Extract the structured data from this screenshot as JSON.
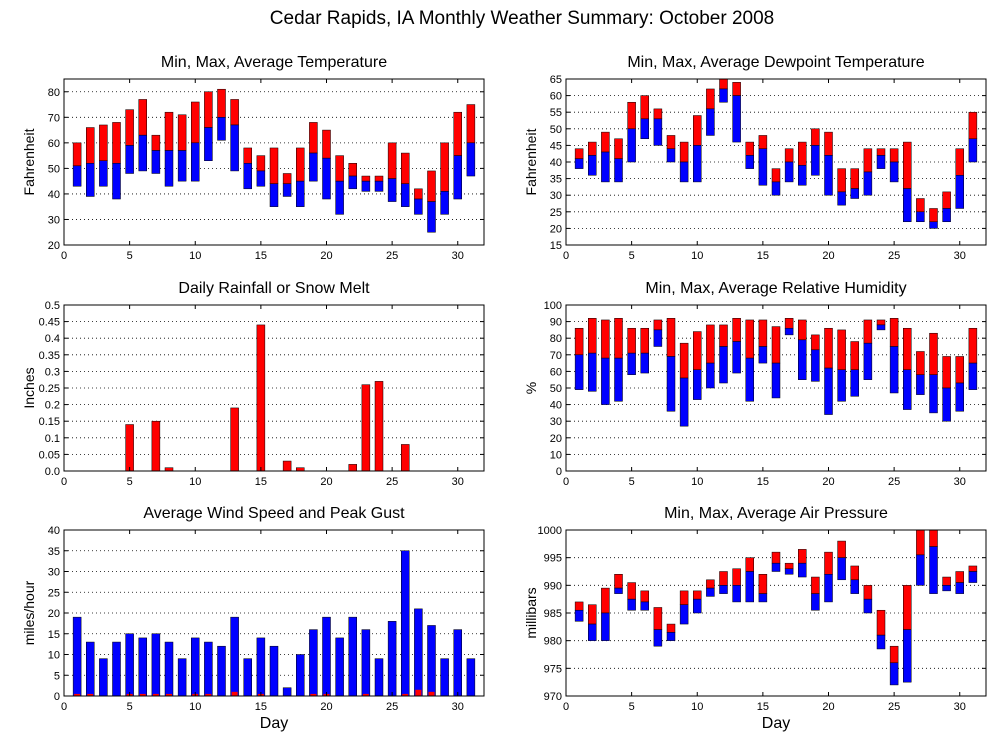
{
  "page": {
    "title": "Cedar Rapids, IA Monthly Weather Summary: October 2008"
  },
  "chart_data": [
    {
      "id": "temp",
      "type": "bar",
      "variant": "range-avg",
      "title": "Min, Max, Average Temperature",
      "xlabel": "",
      "ylabel": "Fahrenheit",
      "xlim": [
        0,
        32
      ],
      "ylim": [
        20,
        85
      ],
      "xticks": [
        0,
        5,
        10,
        15,
        20,
        25,
        30
      ],
      "yticks": [
        20,
        30,
        40,
        50,
        60,
        70,
        80
      ],
      "grid": true,
      "colors": {
        "upper": "#ff0000",
        "lower": "#0000ff"
      },
      "x": [
        1,
        2,
        3,
        4,
        5,
        6,
        7,
        8,
        9,
        10,
        11,
        12,
        13,
        14,
        15,
        16,
        17,
        18,
        19,
        20,
        21,
        22,
        23,
        24,
        25,
        26,
        27,
        28,
        29,
        30,
        31
      ],
      "min": [
        43,
        39,
        43,
        38,
        48,
        49,
        48,
        43,
        45,
        45,
        53,
        61,
        49,
        42,
        43,
        35,
        39,
        35,
        45,
        38,
        32,
        42,
        41,
        41,
        37,
        35,
        32,
        25,
        32,
        38,
        47
      ],
      "avg": [
        51,
        52,
        53,
        52,
        59,
        63,
        57,
        57,
        57,
        60,
        66,
        70,
        67,
        52,
        49,
        44,
        44,
        45,
        56,
        54,
        45,
        47,
        45,
        45,
        46,
        44,
        38,
        37,
        41,
        55,
        60
      ],
      "max": [
        60,
        66,
        67,
        68,
        73,
        77,
        63,
        72,
        71,
        76,
        80,
        81,
        77,
        58,
        55,
        58,
        48,
        58,
        68,
        65,
        55,
        52,
        47,
        47,
        60,
        56,
        42,
        49,
        60,
        72,
        75
      ]
    },
    {
      "id": "dewpoint",
      "type": "bar",
      "variant": "range-avg",
      "title": "Min, Max, Average Dewpoint Temperature",
      "xlabel": "",
      "ylabel": "Fahrenheit",
      "xlim": [
        0,
        32
      ],
      "ylim": [
        15,
        65
      ],
      "xticks": [
        0,
        5,
        10,
        15,
        20,
        25,
        30
      ],
      "yticks": [
        15,
        20,
        25,
        30,
        35,
        40,
        45,
        50,
        55,
        60,
        65
      ],
      "grid": true,
      "colors": {
        "upper": "#ff0000",
        "lower": "#0000ff"
      },
      "x": [
        1,
        2,
        3,
        4,
        5,
        6,
        7,
        8,
        9,
        10,
        11,
        12,
        13,
        14,
        15,
        16,
        17,
        18,
        19,
        20,
        21,
        22,
        23,
        24,
        25,
        26,
        27,
        28,
        29,
        30,
        31
      ],
      "min": [
        38,
        36,
        34,
        34,
        40,
        47,
        45,
        40,
        34,
        34,
        48,
        58,
        46,
        38,
        33,
        30,
        34,
        33,
        36,
        30,
        27,
        29,
        30,
        38,
        34,
        22,
        22,
        20,
        22,
        26,
        40
      ],
      "avg": [
        41,
        42,
        43,
        41,
        50,
        53,
        53,
        44,
        40,
        45,
        56,
        62,
        60,
        42,
        44,
        34,
        40,
        39,
        45,
        42,
        31,
        32,
        37,
        42,
        40,
        32,
        25,
        22,
        26,
        36,
        47
      ],
      "max": [
        44,
        46,
        49,
        47,
        58,
        60,
        56,
        48,
        46,
        54,
        62,
        65,
        64,
        46,
        48,
        38,
        44,
        46,
        50,
        49,
        38,
        38,
        44,
        44,
        44,
        46,
        29,
        26,
        31,
        44,
        55
      ]
    },
    {
      "id": "rain",
      "type": "bar",
      "title": "Daily Rainfall or Snow Melt",
      "xlabel": "",
      "ylabel": "Inches",
      "xlim": [
        0,
        32
      ],
      "ylim": [
        0,
        0.5
      ],
      "xticks": [
        0,
        5,
        10,
        15,
        20,
        25,
        30
      ],
      "yticks": [
        0.0,
        0.05,
        0.1,
        0.15,
        0.2,
        0.25,
        0.3,
        0.35,
        0.4,
        0.45,
        0.5
      ],
      "ytick_labels": [
        "0.0",
        "0.05",
        "0.1",
        "0.15",
        "0.2",
        "0.25",
        "0.3",
        "0.35",
        "0.4",
        "0.45",
        "0.5"
      ],
      "grid": true,
      "colors": {
        "bar": "#ff0000"
      },
      "x": [
        5,
        7,
        8,
        13,
        15,
        17,
        18,
        22,
        23,
        24,
        26
      ],
      "values": [
        0.14,
        0.15,
        0.01,
        0.19,
        0.44,
        0.03,
        0.01,
        0.02,
        0.26,
        0.27,
        0.08
      ]
    },
    {
      "id": "humidity",
      "type": "bar",
      "variant": "range-avg",
      "title": "Min, Max, Average Relative Humidity",
      "xlabel": "",
      "ylabel": "%",
      "xlim": [
        0,
        32
      ],
      "ylim": [
        0,
        100
      ],
      "xticks": [
        0,
        5,
        10,
        15,
        20,
        25,
        30
      ],
      "yticks": [
        0,
        10,
        20,
        30,
        40,
        50,
        60,
        70,
        80,
        90,
        100
      ],
      "grid": true,
      "colors": {
        "upper": "#ff0000",
        "lower": "#0000ff"
      },
      "x": [
        1,
        2,
        3,
        4,
        5,
        6,
        7,
        8,
        9,
        10,
        11,
        12,
        13,
        14,
        15,
        16,
        17,
        18,
        19,
        20,
        21,
        22,
        23,
        24,
        25,
        26,
        27,
        28,
        29,
        30,
        31
      ],
      "min": [
        49,
        48,
        40,
        42,
        58,
        59,
        75,
        36,
        27,
        43,
        50,
        53,
        59,
        42,
        65,
        44,
        82,
        55,
        54,
        34,
        42,
        45,
        55,
        85,
        47,
        37,
        46,
        35,
        30,
        36,
        49
      ],
      "avg": [
        70,
        71,
        68,
        68,
        71,
        71,
        85,
        69,
        56,
        61,
        65,
        75,
        78,
        68,
        75,
        65,
        86,
        79,
        73,
        62,
        61,
        61,
        77,
        88,
        75,
        61,
        58,
        58,
        50,
        53,
        65
      ],
      "max": [
        86,
        92,
        91,
        92,
        86,
        86,
        91,
        92,
        77,
        84,
        88,
        88,
        92,
        91,
        91,
        87,
        92,
        91,
        82,
        86,
        85,
        78,
        91,
        91,
        92,
        86,
        72,
        83,
        69,
        69,
        86
      ]
    },
    {
      "id": "wind",
      "type": "bar",
      "variant": "stacked-overlay",
      "title": "Average Wind Speed and Peak Gust",
      "xlabel": "Day",
      "ylabel": "miles/hour",
      "xlim": [
        0,
        32
      ],
      "ylim": [
        0,
        40
      ],
      "xticks": [
        0,
        5,
        10,
        15,
        20,
        25,
        30
      ],
      "yticks": [
        0,
        5,
        10,
        15,
        20,
        25,
        30,
        35,
        40
      ],
      "grid": true,
      "colors": {
        "avg": "#ff0000",
        "peak": "#0000ff"
      },
      "x": [
        1,
        2,
        3,
        4,
        5,
        6,
        7,
        8,
        9,
        10,
        11,
        12,
        13,
        14,
        15,
        16,
        17,
        18,
        19,
        20,
        21,
        22,
        23,
        24,
        25,
        26,
        27,
        28,
        29,
        30,
        31
      ],
      "avg": [
        0.5,
        0.5,
        0,
        0,
        0.5,
        0.5,
        0.5,
        0.5,
        0,
        0.5,
        0.5,
        0,
        1,
        0,
        0.5,
        0,
        0,
        0,
        0.5,
        0.5,
        0,
        0,
        0.5,
        0,
        0,
        0.5,
        1.5,
        1,
        0,
        0,
        0
      ],
      "peak": [
        19,
        13,
        9,
        13,
        15,
        14,
        15,
        13,
        9,
        14,
        13,
        12,
        19,
        9,
        14,
        12,
        2,
        10,
        16,
        19,
        14,
        19,
        16,
        9,
        18,
        35,
        21,
        17,
        9,
        16,
        9
      ]
    },
    {
      "id": "pressure",
      "type": "bar",
      "variant": "range-avg",
      "title": "Min, Max, Average Air Pressure",
      "xlabel": "Day",
      "ylabel": "millibars",
      "xlim": [
        0,
        32
      ],
      "ylim": [
        970,
        1000
      ],
      "xticks": [
        0,
        5,
        10,
        15,
        20,
        25,
        30
      ],
      "yticks": [
        970,
        975,
        980,
        985,
        990,
        995,
        1000
      ],
      "grid": true,
      "colors": {
        "upper": "#ff0000",
        "lower": "#0000ff"
      },
      "x": [
        1,
        2,
        3,
        4,
        5,
        6,
        7,
        8,
        9,
        10,
        11,
        12,
        13,
        14,
        15,
        16,
        17,
        18,
        19,
        20,
        21,
        22,
        23,
        24,
        25,
        26,
        27,
        28,
        29,
        30,
        31
      ],
      "min": [
        983.5,
        980,
        980,
        988.5,
        985.5,
        985.5,
        979,
        980,
        983,
        985,
        988,
        988.5,
        987,
        987,
        987,
        992.5,
        992,
        991.5,
        985.5,
        987,
        991,
        988.5,
        985,
        978.5,
        972,
        972.5,
        990,
        988.5,
        989,
        988.5,
        990.5
      ],
      "avg": [
        985.5,
        983,
        985,
        989.5,
        987.5,
        987,
        982,
        981.5,
        986.5,
        987.5,
        989.5,
        990,
        990,
        992.5,
        988.5,
        994,
        993,
        994,
        988.5,
        992,
        995,
        991,
        987.5,
        981,
        976,
        982,
        995.5,
        997,
        990,
        990.5,
        992.5
      ],
      "max": [
        987,
        986.5,
        989.5,
        992,
        990.5,
        989,
        986,
        983,
        989,
        989,
        991,
        992.5,
        993,
        995,
        992,
        996,
        994,
        996.5,
        991.5,
        996,
        998,
        993.5,
        990,
        985.5,
        979,
        990,
        1000,
        1000,
        991.5,
        992.5,
        993.5
      ]
    }
  ]
}
